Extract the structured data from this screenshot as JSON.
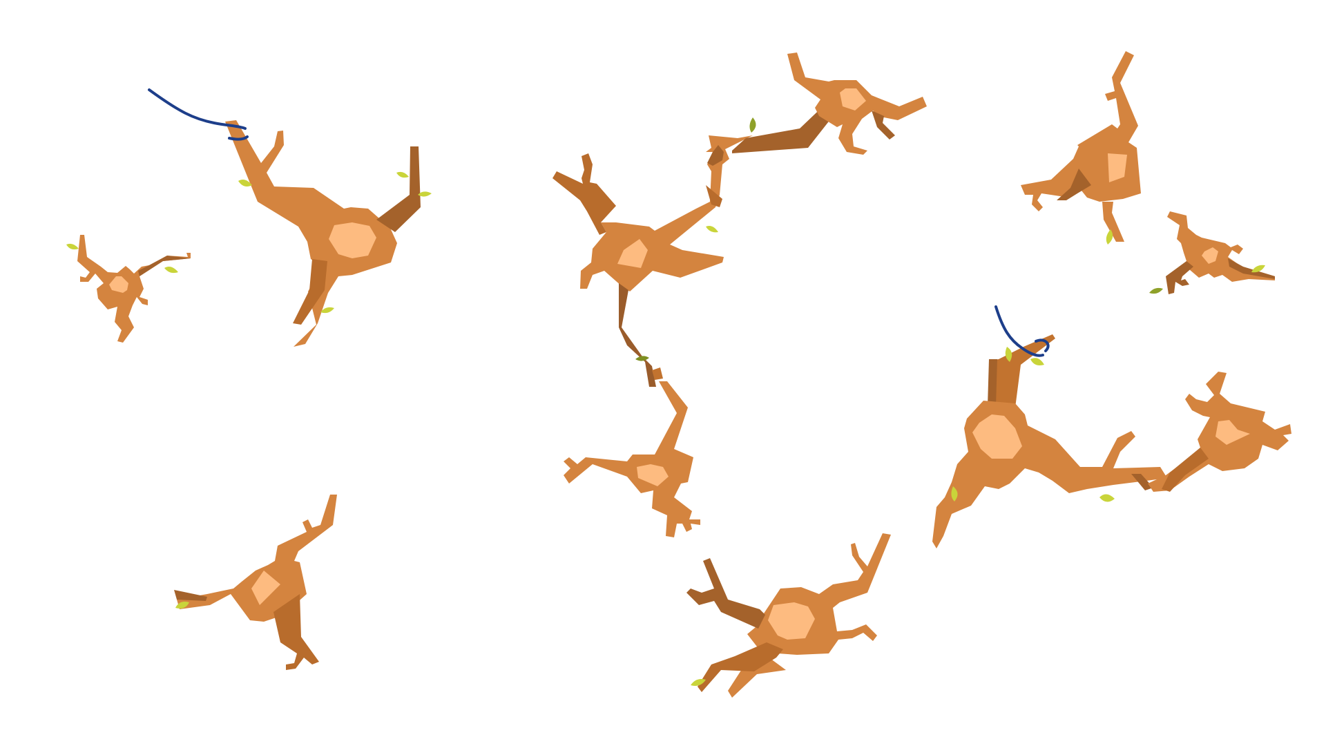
{
  "scene": {
    "description_visible_text": "",
    "background_color": "#ffffff",
    "colors": {
      "process_main": "#D4843F",
      "process_dark": "#A4622B",
      "process_mid": "#C2732F",
      "nucleus": "#FDBB80",
      "leaf": "#C9D43A",
      "leaf_dark": "#7E8F22",
      "wire": "#1D3E8A"
    },
    "neurons": [
      {
        "name": "neuron-large-top-left"
      },
      {
        "name": "neuron-small-left"
      },
      {
        "name": "neuron-center-top"
      },
      {
        "name": "neuron-top-middle-small"
      },
      {
        "name": "neuron-center-lower"
      },
      {
        "name": "neuron-bottom-left"
      },
      {
        "name": "neuron-bottom-center"
      },
      {
        "name": "neuron-top-right"
      },
      {
        "name": "neuron-small-right"
      },
      {
        "name": "neuron-right-large"
      },
      {
        "name": "neuron-far-right"
      }
    ],
    "wires": [
      {
        "name": "wire-top-left"
      },
      {
        "name": "wire-right"
      }
    ]
  }
}
